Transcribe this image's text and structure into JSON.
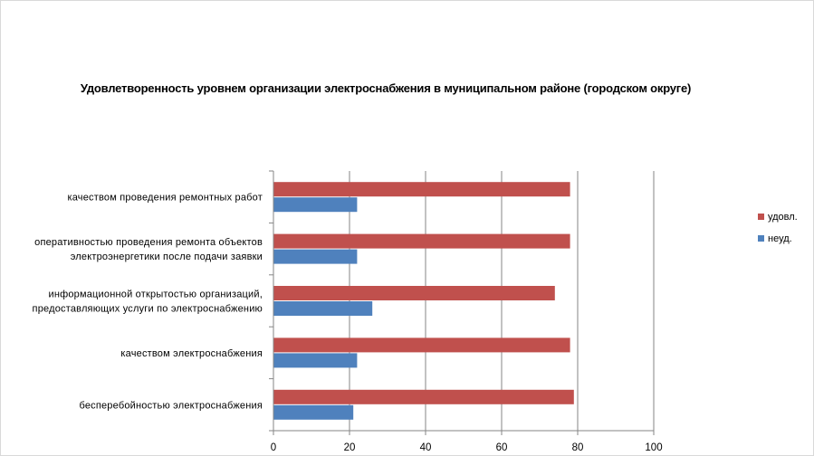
{
  "chart_data": {
    "type": "bar",
    "orientation": "horizontal",
    "title": "Удовлетворенность уровнем организации электроснабжения в муниципальном районе (городском округе)",
    "categories": [
      [
        "бесперебойностью  электроснабжения"
      ],
      [
        "качеством  электроснабжения"
      ],
      [
        "информационной открытостью организаций,",
        "предоставляющих услуги по электроснабжению"
      ],
      [
        "оперативностью  проведения  ремонта  объектов",
        "электроэнергетики  после подачи  заявки"
      ],
      [
        "качеством  проведения  ремонтных  работ"
      ]
    ],
    "series": [
      {
        "name": "удовл.",
        "color": "#c0504d",
        "values": [
          79,
          78,
          74,
          78,
          78
        ]
      },
      {
        "name": "неуд.",
        "color": "#4f81bd",
        "values": [
          21,
          22,
          26,
          22,
          22
        ]
      }
    ],
    "xlim": [
      0,
      100
    ],
    "xticks": [
      0,
      20,
      40,
      60,
      80,
      100
    ],
    "grid": true,
    "legend_position": "right"
  }
}
